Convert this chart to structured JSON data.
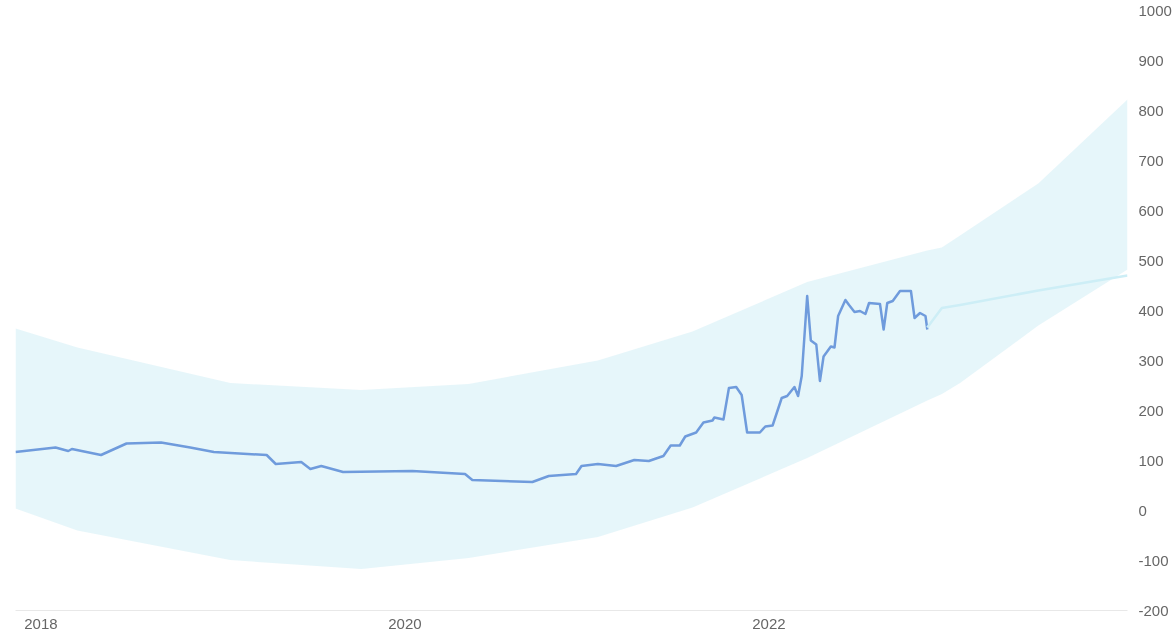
{
  "chart_data": {
    "type": "line",
    "xlim": [
      2017.86,
      2023.97
    ],
    "ylim": [
      -200,
      1000
    ],
    "xticks": [
      2018,
      2020,
      2022
    ],
    "yticks": [
      -200,
      -100,
      0,
      100,
      200,
      300,
      400,
      500,
      600,
      700,
      800,
      900,
      1000
    ],
    "grid": false,
    "series": [
      {
        "color": "#6f9bdc",
        "x": [
          2017.86,
          2018.08,
          2018.15,
          2018.17,
          2018.33,
          2018.47,
          2018.66,
          2018.82,
          2018.95,
          2019.24,
          2019.29,
          2019.43,
          2019.48,
          2019.54,
          2019.66,
          2020.04,
          2020.33,
          2020.37,
          2020.7,
          2020.79,
          2020.94,
          2020.97,
          2021.06,
          2021.16,
          2021.26,
          2021.34,
          2021.42,
          2021.46,
          2021.51,
          2021.54,
          2021.6,
          2021.64,
          2021.69,
          2021.7,
          2021.75,
          2021.78,
          2021.82,
          2021.85,
          2021.88,
          2021.95,
          2021.98,
          2022.02,
          2022.07,
          2022.1,
          2022.14,
          2022.16,
          2022.18,
          2022.21,
          2022.23,
          2022.26,
          2022.28,
          2022.3,
          2022.34,
          2022.36,
          2022.38,
          2022.42,
          2022.44,
          2022.47,
          2022.5,
          2022.53,
          2022.55,
          2022.61,
          2022.63,
          2022.65,
          2022.68,
          2022.72,
          2022.78,
          2022.8,
          2022.83,
          2022.86,
          2022.87
        ],
        "values": [
          117,
          126,
          119,
          123,
          111,
          134,
          136,
          126,
          117,
          111,
          93,
          97,
          83,
          89,
          77,
          79,
          73,
          61,
          57,
          69,
          73,
          89,
          93,
          89,
          101,
          99,
          109,
          130,
          130,
          148,
          156,
          176,
          180,
          186,
          182,
          245,
          247,
          231,
          156,
          156,
          168,
          170,
          225,
          229,
          247,
          229,
          269,
          429,
          340,
          332,
          259,
          308,
          328,
          326,
          389,
          421,
          411,
          397,
          399,
          393,
          415,
          413,
          362,
          415,
          419,
          439,
          439,
          385,
          395,
          389,
          362
        ]
      },
      {
        "color": "#cdeef6",
        "x": [
          2017.86,
          2018.2,
          2019.04,
          2019.76,
          2020.35,
          2021.06,
          2021.58,
          2022.21,
          2022.87,
          2022.95,
          2023.05,
          2023.48,
          2023.97
        ],
        "values": [
          null,
          null,
          null,
          null,
          null,
          null,
          null,
          null,
          366,
          405,
          411,
          440,
          470
        ],
        "lower": [
          4,
          -40,
          -99,
          -117,
          -95,
          -53,
          6,
          105,
          220,
          233,
          255,
          370,
          482
        ],
        "upper": [
          364,
          326,
          255,
          241,
          253,
          300,
          358,
          457,
          520,
          526,
          550,
          654,
          822
        ]
      }
    ]
  }
}
